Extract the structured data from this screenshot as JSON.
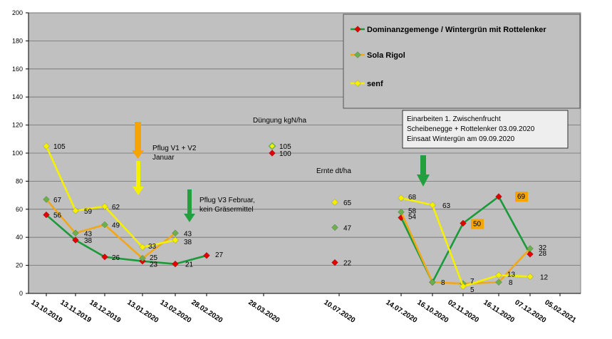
{
  "chart_data": {
    "type": "line",
    "ylim": [
      0,
      200
    ],
    "yticks": [
      0,
      20,
      40,
      60,
      80,
      100,
      120,
      140,
      160,
      180,
      200
    ],
    "grid": true,
    "legend_position": "top-right",
    "categories": [
      "13.10.2019",
      "13.11.2019",
      "18.12.2019",
      "13.01.2020",
      "13.02.2020",
      "28.02.2020",
      "28.03.2020",
      "10.07.2020",
      "14.07.2020",
      "16.10.2020",
      "02.11.2020",
      "16.11.2020",
      "07.12.2020",
      "05.02.2021"
    ],
    "series": [
      {
        "name": "Dominanzgemenge / Wintergrün mit Rottelenker",
        "color": "#1a9a3a",
        "marker_color": "#e00000",
        "points": [
          [
            0,
            56
          ],
          [
            1,
            38
          ],
          [
            2,
            26
          ],
          [
            3,
            23
          ],
          [
            4,
            21
          ],
          [
            5,
            27
          ],
          [
            8,
            54
          ],
          [
            9,
            8
          ],
          [
            10,
            50
          ],
          [
            11,
            69
          ],
          [
            12,
            28
          ]
        ]
      },
      {
        "name": "Sola Rigol",
        "color": "#f0a818",
        "marker_color": "#6ab04c",
        "points": [
          [
            0,
            67
          ],
          [
            1,
            43
          ],
          [
            2,
            49
          ],
          [
            3,
            25
          ],
          [
            4,
            43
          ],
          [
            8,
            58
          ],
          [
            9,
            8
          ],
          [
            10,
            7
          ],
          [
            11,
            8
          ],
          [
            12,
            32
          ]
        ]
      },
      {
        "name": "senf",
        "color": "#f5f000",
        "marker_color": "#f5f000",
        "points": [
          [
            0,
            105
          ],
          [
            1,
            59
          ],
          [
            2,
            62
          ],
          [
            3,
            33
          ],
          [
            4,
            38
          ],
          [
            8,
            68
          ],
          [
            9,
            63
          ],
          [
            10,
            5
          ],
          [
            11,
            13
          ],
          [
            12,
            12
          ]
        ]
      }
    ],
    "data_labels": [
      {
        "text": "105",
        "x": 0,
        "y": 105,
        "dx": 10,
        "dy": 4
      },
      {
        "text": "67",
        "x": 0,
        "y": 67,
        "dx": 10,
        "dy": 4
      },
      {
        "text": "56",
        "x": 0,
        "y": 56,
        "dx": 10,
        "dy": 4
      },
      {
        "text": "59",
        "x": 1,
        "y": 59,
        "dx": 12,
        "dy": 4
      },
      {
        "text": "43",
        "x": 1,
        "y": 43,
        "dx": 12,
        "dy": 4
      },
      {
        "text": "38",
        "x": 1,
        "y": 38,
        "dx": 12,
        "dy": 4
      },
      {
        "text": "62",
        "x": 2,
        "y": 62,
        "dx": 10,
        "dy": 4
      },
      {
        "text": "49",
        "x": 2,
        "y": 49,
        "dx": 10,
        "dy": 4
      },
      {
        "text": "26",
        "x": 2,
        "y": 26,
        "dx": 10,
        "dy": 4
      },
      {
        "text": "33",
        "x": 3,
        "y": 33,
        "dx": 8,
        "dy": 2
      },
      {
        "text": "25",
        "x": 3,
        "y": 25,
        "dx": 10,
        "dy": 2
      },
      {
        "text": "23",
        "x": 3,
        "y": 23,
        "dx": 10,
        "dy": 8
      },
      {
        "text": "43",
        "x": 4,
        "y": 43,
        "dx": 12,
        "dy": 4
      },
      {
        "text": "38",
        "x": 4,
        "y": 38,
        "dx": 12,
        "dy": 6
      },
      {
        "text": "21",
        "x": 4,
        "y": 21,
        "dx": 14,
        "dy": 4
      },
      {
        "text": "27",
        "x": 5,
        "y": 27,
        "dx": 12,
        "dy": 2
      },
      {
        "text": "68",
        "x": 8,
        "y": 68,
        "dx": 10,
        "dy": 2
      },
      {
        "text": "58",
        "x": 8,
        "y": 58,
        "dx": 10,
        "dy": 2
      },
      {
        "text": "54",
        "x": 8,
        "y": 54,
        "dx": 10,
        "dy": 2
      },
      {
        "text": "63",
        "x": 9,
        "y": 63,
        "dx": 14,
        "dy": 4
      },
      {
        "text": "8",
        "x": 9,
        "y": 8,
        "dx": 12,
        "dy": 4
      },
      {
        "text": "7",
        "x": 10,
        "y": 7,
        "dx": 10,
        "dy": 0
      },
      {
        "text": "5",
        "x": 10,
        "y": 5,
        "dx": 10,
        "dy": 8
      },
      {
        "text": "13",
        "x": 11,
        "y": 13,
        "dx": 12,
        "dy": 2
      },
      {
        "text": "8",
        "x": 11,
        "y": 8,
        "dx": 14,
        "dy": 4
      },
      {
        "text": "32",
        "x": 12,
        "y": 32,
        "dx": 12,
        "dy": 2
      },
      {
        "text": "28",
        "x": 12,
        "y": 28,
        "dx": 12,
        "dy": 2
      },
      {
        "text": "12",
        "x": 12,
        "y": 12,
        "dx": 14,
        "dy": 4
      }
    ],
    "boxed_labels": [
      {
        "text": "50",
        "x": 10,
        "y": 50,
        "dx": 14,
        "dy": 4
      },
      {
        "text": "69",
        "x": 11,
        "y": 69,
        "dx": 26,
        "dy": 3
      }
    ],
    "duengung": {
      "label": "Düngung kgN/ha",
      "points": [
        {
          "y": 105,
          "marker": "#f5f000",
          "edge": "#6ab04c",
          "text": "105"
        },
        {
          "y": 100,
          "marker": "#e00000",
          "text": "100"
        }
      ]
    },
    "ernte": {
      "label": "Ernte dt/ha",
      "points": [
        {
          "y": 65,
          "marker": "#f5f000",
          "text": "65"
        },
        {
          "y": 47,
          "marker": "#6ab04c",
          "text": "47"
        },
        {
          "y": 22,
          "marker": "#e00000",
          "text": "22"
        }
      ]
    },
    "annotations": {
      "pflug1": [
        "Pflug V1 + V2",
        "Januar"
      ],
      "pflug2": [
        "Pflug V3 Februar,",
        "kein Gräsermittel"
      ],
      "box": [
        "Einarbeiten 1. Zwischenfrucht",
        "Scheibenegge + Rottelenker 03.09.2020",
        "Einsaat Wintergün am 09.09.2020"
      ]
    },
    "colors": {
      "plot_bg": "#c0c0c0",
      "legend_bg": "#c0c0c0",
      "annot_bg": "#eeeeee",
      "arrow_orange": "#f5a400",
      "arrow_green": "#22a040",
      "grid": "#707070",
      "box_label_bg": "#f5a400"
    }
  }
}
